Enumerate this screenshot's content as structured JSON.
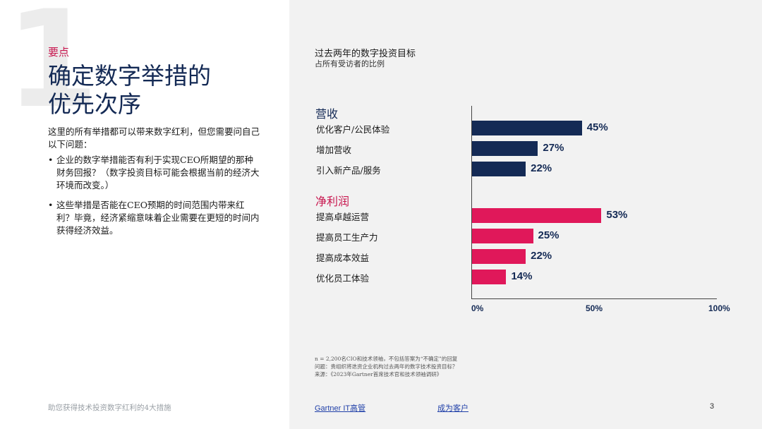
{
  "left": {
    "big_number": "1",
    "eyebrow": "要点",
    "headline_line1": "确定数字举措的",
    "headline_line2": "优先次序",
    "intro": "这里的所有举措都可以带来数字红利，但您需要问自己以下问题：",
    "bullets": [
      "企业的数字举措能否有利于实现CEO所期望的那种财务回报？（数字投资目标可能会根据当前的经济大环境而改变。）",
      "这些举措是否能在CEO预期的时间范围内带来红利？毕竟，经济紧缩意味着企业需要在更短的时间内获得经济效益。"
    ],
    "footer": "助您获得技术投资数字红利的4大措施"
  },
  "chart_data": {
    "type": "bar",
    "orientation": "horizontal",
    "title": "过去两年的数字投资目标",
    "subtitle": "占所有受访者的比例",
    "groups": [
      {
        "name": "营收",
        "color": "#142a55",
        "categories": [
          "优化客户/公民体验",
          "增加营收",
          "引入新产品/服务"
        ],
        "values": [
          45,
          27,
          22
        ],
        "labels": [
          "45%",
          "27%",
          "22%"
        ]
      },
      {
        "name": "净利润",
        "color": "#e0185a",
        "categories": [
          "提高卓越运营",
          "提高员工生产力",
          "提高成本效益",
          "优化员工体验"
        ],
        "values": [
          53,
          25,
          22,
          14
        ],
        "labels": [
          "53%",
          "25%",
          "22%",
          "14%"
        ]
      }
    ],
    "xlim": [
      0,
      100
    ],
    "x_ticks": [
      "0%",
      "50%",
      "100%"
    ],
    "grid": false
  },
  "notes": [
    "n = 2,200名CIO和技术领袖，不包括答案为“不确定”的回复",
    "问题：贵组织将迭资企业机构过去两年的数字技术投资目标？",
    "来源：《2023年Gartner首席技术官和技术领袖调研》"
  ],
  "footer": {
    "link1": "Gartner IT高管",
    "link2": "成为客户",
    "page": "3"
  }
}
